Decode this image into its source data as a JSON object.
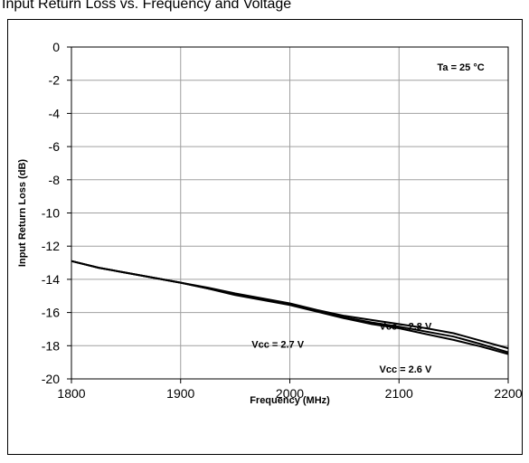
{
  "page": {
    "top_caption": "Input Return Loss vs. Frequency and Voltage"
  },
  "chart_data": {
    "type": "line",
    "title": "",
    "xlabel": "Frequency (MHz)",
    "ylabel": "Input Return Loss (dB)",
    "xlim": [
      1800,
      2200
    ],
    "ylim": [
      -20,
      0
    ],
    "x_ticks": [
      1800,
      1900,
      2000,
      2100,
      2200
    ],
    "y_ticks": [
      0,
      -2,
      -4,
      -6,
      -8,
      -10,
      -12,
      -14,
      -16,
      -18,
      -20
    ],
    "grid": true,
    "legend": "none",
    "line_color": "#000000",
    "grid_color": "#a0a0a0",
    "annotations": [
      {
        "id": "ta",
        "text": "Ta = 25 °C",
        "x": 2135,
        "y": -1.2
      },
      {
        "id": "vcc28",
        "text": "Vcc = 2.8 V",
        "x": 2082,
        "y": -16.8
      },
      {
        "id": "vcc27",
        "text": "Vcc = 2.7 V",
        "x": 1965,
        "y": -17.9
      },
      {
        "id": "vcc26",
        "text": "Vcc = 2.6 V",
        "x": 2082,
        "y": -19.4
      }
    ],
    "series": [
      {
        "label": "Vcc = 2.6 V",
        "x": [
          1800,
          1825,
          1850,
          1875,
          1900,
          1925,
          1950,
          1975,
          2000,
          2025,
          2050,
          2075,
          2100,
          2125,
          2150,
          2175,
          2200
        ],
        "values": [
          -12.9,
          -13.3,
          -13.6,
          -13.9,
          -14.2,
          -14.55,
          -14.95,
          -15.25,
          -15.55,
          -15.95,
          -16.35,
          -16.7,
          -16.95,
          -17.3,
          -17.65,
          -18.05,
          -18.5
        ]
      },
      {
        "label": "Vcc = 2.7 V",
        "x": [
          1800,
          1825,
          1850,
          1875,
          1900,
          1925,
          1950,
          1975,
          2000,
          2025,
          2050,
          2075,
          2100,
          2125,
          2150,
          2175,
          2200
        ],
        "values": [
          -12.9,
          -13.3,
          -13.6,
          -13.9,
          -14.2,
          -14.55,
          -14.9,
          -15.2,
          -15.5,
          -15.9,
          -16.3,
          -16.6,
          -16.85,
          -17.15,
          -17.45,
          -17.9,
          -18.4
        ]
      },
      {
        "label": "Vcc = 2.8 V",
        "x": [
          1800,
          1825,
          1850,
          1875,
          1900,
          1925,
          1950,
          1975,
          2000,
          2025,
          2050,
          2075,
          2100,
          2125,
          2150,
          2175,
          2200
        ],
        "values": [
          -12.9,
          -13.3,
          -13.6,
          -13.9,
          -14.2,
          -14.5,
          -14.85,
          -15.15,
          -15.45,
          -15.85,
          -16.2,
          -16.45,
          -16.7,
          -16.95,
          -17.25,
          -17.7,
          -18.15
        ]
      }
    ]
  }
}
